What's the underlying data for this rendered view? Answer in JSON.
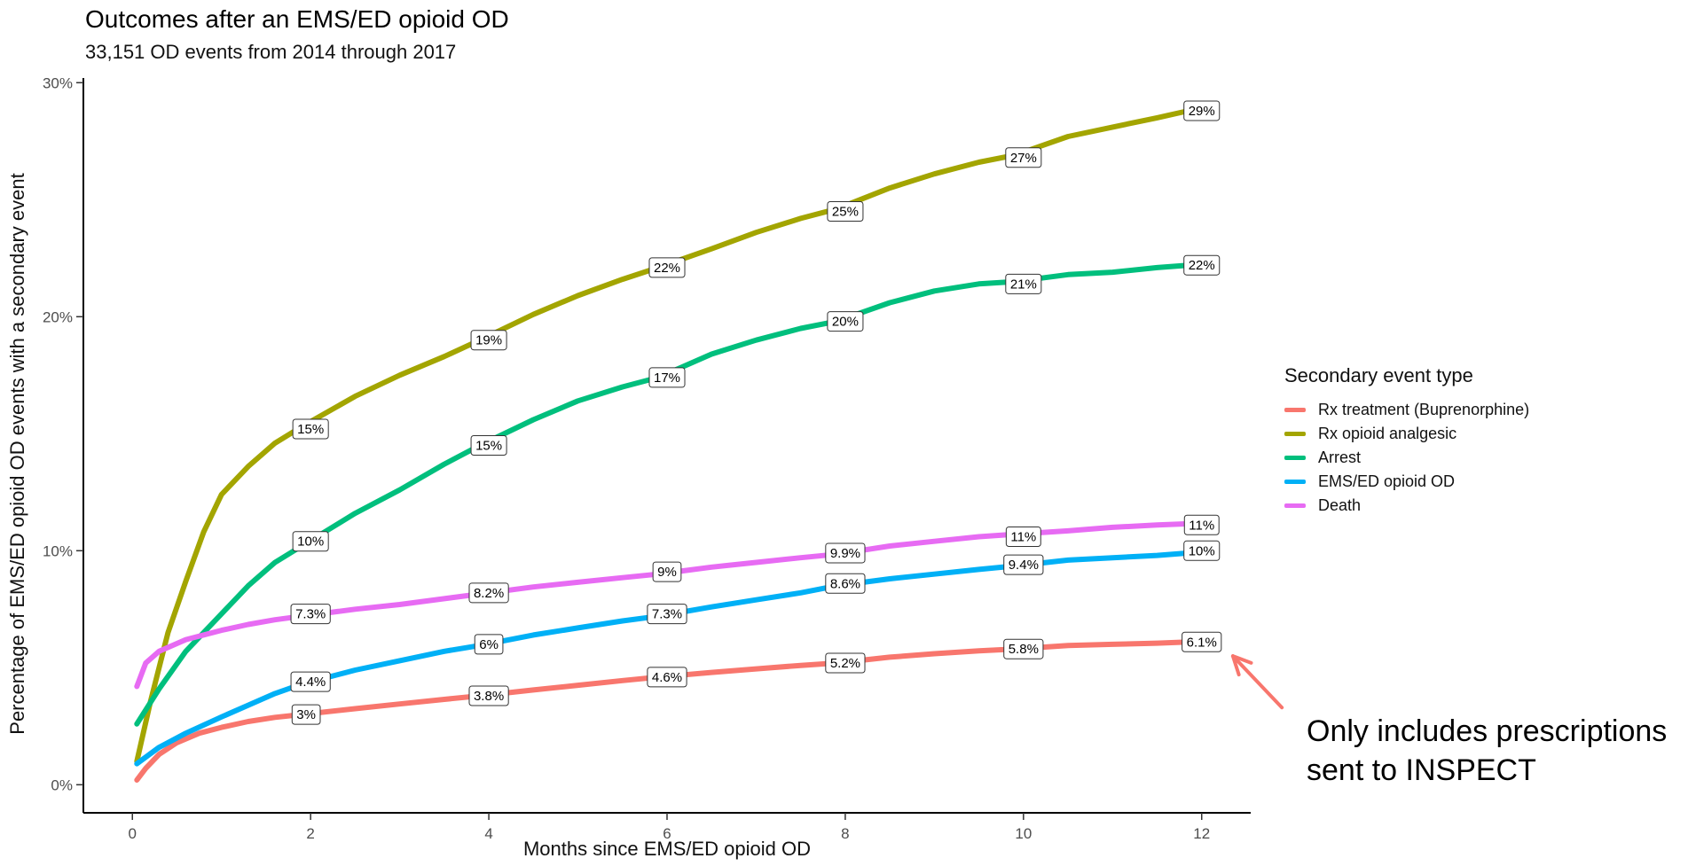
{
  "chart_data": {
    "type": "line",
    "title": "Outcomes after an EMS/ED opioid OD",
    "subtitle": "33,151 OD events from 2014 through 2017",
    "xlabel": "Months since EMS/ED opioid OD",
    "ylabel": "Percentage of EMS/ED opioid OD events with a secondary event",
    "xlim": [
      -0.55,
      12.55
    ],
    "ylim": [
      -1.2,
      30.2
    ],
    "x_ticks": [
      0,
      2,
      4,
      6,
      8,
      10,
      12
    ],
    "x_tick_labels": [
      "0",
      "2",
      "4",
      "6",
      "8",
      "10",
      "12"
    ],
    "y_ticks": [
      0,
      10,
      20,
      30
    ],
    "y_tick_labels": [
      "0%",
      "10%",
      "20%",
      "30%"
    ],
    "grid": false,
    "legend": {
      "title": "Secondary event type",
      "placement": "right"
    },
    "series": [
      {
        "name": "Rx treatment (Buprenorphine)",
        "color": "#F8766D",
        "points": [
          [
            0.05,
            0.2
          ],
          [
            0.15,
            0.7
          ],
          [
            0.3,
            1.3
          ],
          [
            0.5,
            1.8
          ],
          [
            0.75,
            2.2
          ],
          [
            1,
            2.45
          ],
          [
            1.3,
            2.7
          ],
          [
            1.6,
            2.88
          ],
          [
            1.9,
            3.0
          ],
          [
            2.5,
            3.25
          ],
          [
            3,
            3.45
          ],
          [
            3.5,
            3.65
          ],
          [
            3.9,
            3.8
          ],
          [
            4.5,
            4.05
          ],
          [
            5,
            4.25
          ],
          [
            5.5,
            4.45
          ],
          [
            5.9,
            4.6
          ],
          [
            6.5,
            4.8
          ],
          [
            7,
            4.95
          ],
          [
            7.5,
            5.1
          ],
          [
            7.9,
            5.2
          ],
          [
            8.5,
            5.45
          ],
          [
            9,
            5.6
          ],
          [
            9.5,
            5.72
          ],
          [
            9.9,
            5.8
          ],
          [
            10.5,
            5.95
          ],
          [
            11,
            6.0
          ],
          [
            11.5,
            6.05
          ],
          [
            11.85,
            6.1
          ]
        ],
        "labels": [
          [
            1.95,
            3.0,
            "3%"
          ],
          [
            4.0,
            3.8,
            "3.8%"
          ],
          [
            6.0,
            4.6,
            "4.6%"
          ],
          [
            8.0,
            5.2,
            "5.2%"
          ],
          [
            10.0,
            5.8,
            "5.8%"
          ],
          [
            12.0,
            6.1,
            "6.1%"
          ]
        ]
      },
      {
        "name": "Rx opioid analgesic",
        "color": "#A3A500",
        "points": [
          [
            0.05,
            1.0
          ],
          [
            0.2,
            3.5
          ],
          [
            0.4,
            6.5
          ],
          [
            0.6,
            8.7
          ],
          [
            0.8,
            10.8
          ],
          [
            1,
            12.4
          ],
          [
            1.3,
            13.6
          ],
          [
            1.6,
            14.6
          ],
          [
            1.9,
            15.3
          ],
          [
            2.5,
            16.6
          ],
          [
            3,
            17.5
          ],
          [
            3.5,
            18.3
          ],
          [
            3.9,
            19.0
          ],
          [
            4.5,
            20.1
          ],
          [
            5,
            20.9
          ],
          [
            5.5,
            21.6
          ],
          [
            5.9,
            22.1
          ],
          [
            6.5,
            22.9
          ],
          [
            7,
            23.6
          ],
          [
            7.5,
            24.2
          ],
          [
            7.9,
            24.6
          ],
          [
            8.5,
            25.5
          ],
          [
            9,
            26.1
          ],
          [
            9.5,
            26.6
          ],
          [
            9.9,
            26.9
          ],
          [
            10.5,
            27.7
          ],
          [
            11,
            28.1
          ],
          [
            11.5,
            28.5
          ],
          [
            11.85,
            28.8
          ]
        ],
        "labels": [
          [
            2.0,
            15.2,
            "15%"
          ],
          [
            4.0,
            19.0,
            "19%"
          ],
          [
            6.0,
            22.1,
            "22%"
          ],
          [
            8.0,
            24.5,
            "25%"
          ],
          [
            10.0,
            26.8,
            "27%"
          ],
          [
            12.0,
            28.8,
            "29%"
          ]
        ]
      },
      {
        "name": "Arrest",
        "color": "#00BF7D",
        "points": [
          [
            0.05,
            2.6
          ],
          [
            0.3,
            4.1
          ],
          [
            0.6,
            5.7
          ],
          [
            1,
            7.3
          ],
          [
            1.3,
            8.5
          ],
          [
            1.6,
            9.5
          ],
          [
            1.9,
            10.2
          ],
          [
            2.5,
            11.6
          ],
          [
            3,
            12.6
          ],
          [
            3.5,
            13.7
          ],
          [
            3.9,
            14.5
          ],
          [
            4.5,
            15.6
          ],
          [
            5,
            16.4
          ],
          [
            5.5,
            17.0
          ],
          [
            5.9,
            17.4
          ],
          [
            6.5,
            18.4
          ],
          [
            7,
            19.0
          ],
          [
            7.5,
            19.5
          ],
          [
            7.9,
            19.8
          ],
          [
            8.5,
            20.6
          ],
          [
            9,
            21.1
          ],
          [
            9.5,
            21.4
          ],
          [
            9.9,
            21.5
          ],
          [
            10.5,
            21.8
          ],
          [
            11,
            21.9
          ],
          [
            11.5,
            22.1
          ],
          [
            11.85,
            22.2
          ]
        ],
        "labels": [
          [
            2.0,
            10.4,
            "10%"
          ],
          [
            4.0,
            14.5,
            "15%"
          ],
          [
            6.0,
            17.4,
            "17%"
          ],
          [
            8.0,
            19.8,
            "20%"
          ],
          [
            10.0,
            21.4,
            "21%"
          ],
          [
            12.0,
            22.2,
            "22%"
          ]
        ]
      },
      {
        "name": "EMS/ED opioid OD",
        "color": "#00B0F6",
        "points": [
          [
            0.05,
            0.9
          ],
          [
            0.3,
            1.6
          ],
          [
            0.6,
            2.2
          ],
          [
            1,
            2.9
          ],
          [
            1.3,
            3.4
          ],
          [
            1.6,
            3.9
          ],
          [
            1.9,
            4.3
          ],
          [
            2.5,
            4.9
          ],
          [
            3,
            5.3
          ],
          [
            3.5,
            5.7
          ],
          [
            3.9,
            5.95
          ],
          [
            4.5,
            6.4
          ],
          [
            5,
            6.7
          ],
          [
            5.5,
            7.0
          ],
          [
            5.9,
            7.2
          ],
          [
            6.5,
            7.6
          ],
          [
            7,
            7.9
          ],
          [
            7.5,
            8.2
          ],
          [
            7.9,
            8.5
          ],
          [
            8.5,
            8.8
          ],
          [
            9,
            9.0
          ],
          [
            9.5,
            9.2
          ],
          [
            9.9,
            9.35
          ],
          [
            10.5,
            9.6
          ],
          [
            11,
            9.7
          ],
          [
            11.5,
            9.8
          ],
          [
            11.85,
            9.9
          ]
        ],
        "labels": [
          [
            2.0,
            4.4,
            "4.4%"
          ],
          [
            4.0,
            6.0,
            "6%"
          ],
          [
            6.0,
            7.3,
            "7.3%"
          ],
          [
            8.0,
            8.6,
            "8.6%"
          ],
          [
            10.0,
            9.4,
            "9.4%"
          ],
          [
            12.0,
            10.0,
            "10%"
          ]
        ]
      },
      {
        "name": "Death",
        "color": "#E76BF3",
        "points": [
          [
            0.05,
            4.2
          ],
          [
            0.15,
            5.2
          ],
          [
            0.3,
            5.7
          ],
          [
            0.6,
            6.2
          ],
          [
            1,
            6.6
          ],
          [
            1.3,
            6.85
          ],
          [
            1.6,
            7.05
          ],
          [
            1.9,
            7.2
          ],
          [
            2.5,
            7.5
          ],
          [
            3,
            7.7
          ],
          [
            3.5,
            7.95
          ],
          [
            3.9,
            8.15
          ],
          [
            4.5,
            8.45
          ],
          [
            5,
            8.65
          ],
          [
            5.5,
            8.85
          ],
          [
            5.9,
            9.0
          ],
          [
            6.5,
            9.3
          ],
          [
            7,
            9.5
          ],
          [
            7.5,
            9.7
          ],
          [
            7.9,
            9.85
          ],
          [
            8.5,
            10.2
          ],
          [
            9,
            10.4
          ],
          [
            9.5,
            10.6
          ],
          [
            9.9,
            10.7
          ],
          [
            10.5,
            10.85
          ],
          [
            11,
            11.0
          ],
          [
            11.5,
            11.1
          ],
          [
            11.85,
            11.15
          ]
        ],
        "labels": [
          [
            2.0,
            7.3,
            "7.3%"
          ],
          [
            4.0,
            8.2,
            "8.2%"
          ],
          [
            6.0,
            9.1,
            "9%"
          ],
          [
            8.0,
            9.9,
            "9.9%"
          ],
          [
            10.0,
            10.6,
            "11%"
          ],
          [
            12.0,
            11.1,
            "11%"
          ]
        ]
      }
    ],
    "annotation": {
      "lines": [
        "Only includes prescriptions",
        "sent to INSPECT"
      ],
      "arrow_color": "#F8766D",
      "arrow_points_to": [
        12.35,
        5.5
      ],
      "arrow_from": [
        12.9,
        3.3
      ]
    }
  }
}
